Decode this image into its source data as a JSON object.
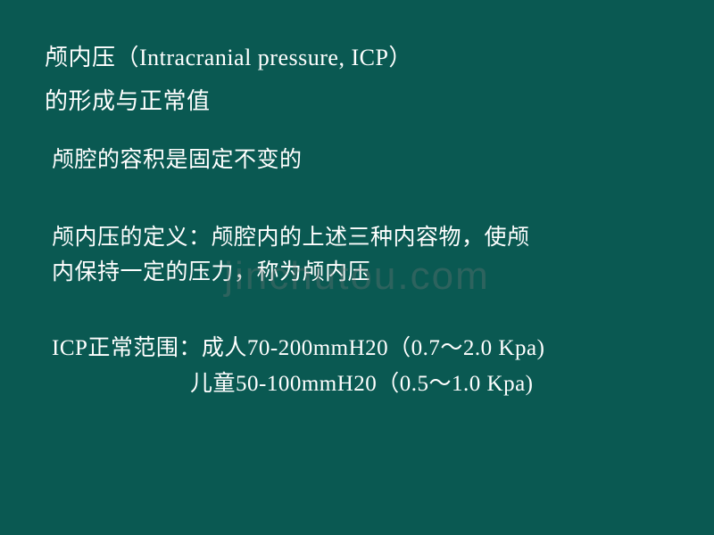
{
  "slide": {
    "background_color": "#0a5952",
    "text_color": "#ffffff",
    "title": {
      "line1": "颅内压（Intracranial pressure, ICP）",
      "line2": "的形成与正常值",
      "fontsize": 26
    },
    "paragraphs": {
      "p1": "颅腔的容积是固定不变的",
      "p2_line1": "颅内压的定义：颅腔内的上述三种内容物，使颅",
      "p2_line2": "内保持一定的压力，称为颅内压",
      "p3_line1": "ICP正常范围：成人70-200mmH20（0.7～2.0 Kpa)",
      "p3_line2": "儿童50-100mmH20（0.5～1.0 Kpa)",
      "fontsize": 25
    },
    "watermark": {
      "text": "jinchutou.com",
      "color": "rgba(120,120,120,0.32)",
      "fontsize": 44
    }
  }
}
